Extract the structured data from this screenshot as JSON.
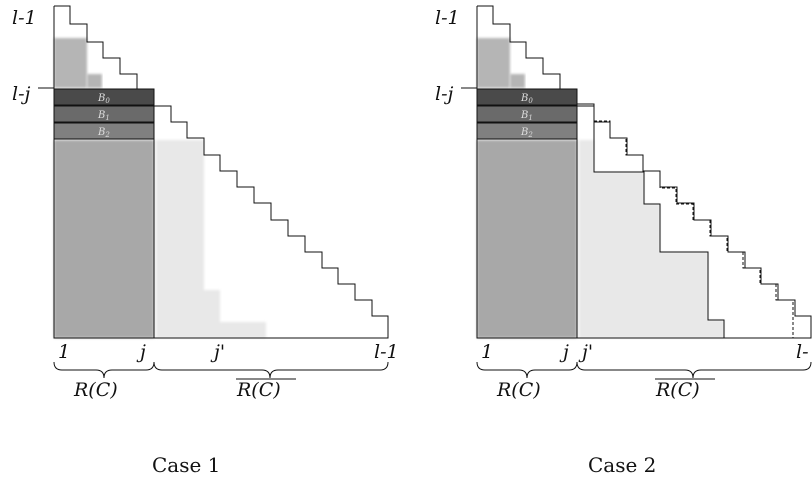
{
  "cases": [
    {
      "caption": "Case 1",
      "row_labels": {
        "top": "l-1",
        "mid": "l-j"
      },
      "blocks": [
        "B0",
        "B1",
        "B2"
      ],
      "col_labels": {
        "start": "1",
        "j": "j",
        "jprime": "j'",
        "end": "l-1"
      },
      "brace_left": "R(C)",
      "brace_right": "R(C)"
    },
    {
      "caption": "Case 2",
      "row_labels": {
        "top": "l-1",
        "mid": "l-j"
      },
      "blocks": [
        "B0",
        "B1",
        "B2"
      ],
      "col_labels": {
        "start": "1",
        "j": "j",
        "jprime": "j'",
        "end": "l-"
      },
      "brace_left": "R(C)",
      "brace_right": "R(C)"
    }
  ]
}
